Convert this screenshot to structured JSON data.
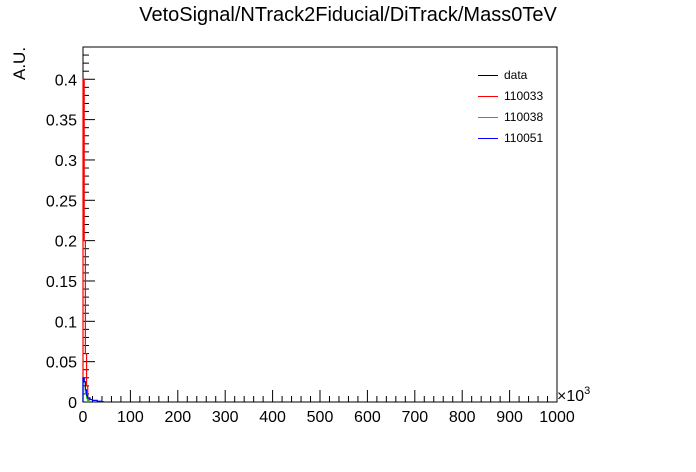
{
  "chart_data": {
    "type": "line",
    "title": "VetoSignal/NTrack2Fiducial/DiTrack/Mass0TeV",
    "xlabel": "",
    "ylabel": "A.U.",
    "x_multiplier": "×10^3",
    "x_multiplier_label": "×10",
    "x_multiplier_exp": "3",
    "xlim": [
      0,
      1000
    ],
    "ylim": [
      0,
      0.44
    ],
    "xticks": [
      "0",
      "100",
      "200",
      "300",
      "400",
      "500",
      "600",
      "700",
      "800",
      "900",
      "1000"
    ],
    "yticks": [
      "0",
      "0.05",
      "0.1",
      "0.15",
      "0.2",
      "0.25",
      "0.3",
      "0.35",
      "0.4"
    ],
    "grid": false,
    "legend_position": "top-right",
    "series": [
      {
        "name": "data",
        "color": "#000000",
        "x": [],
        "values": []
      },
      {
        "name": "110033",
        "color": "#ff0000",
        "x": [
          0,
          2.5,
          5,
          7.5,
          10
        ],
        "values": [
          0.4,
          0.2,
          0.06,
          0.02,
          0.005
        ]
      },
      {
        "name": "110038",
        "color": "#00cc00",
        "x": [
          0,
          2.5,
          5,
          7.5,
          10
        ],
        "values": [
          0.03,
          0.025,
          0.01,
          0.005,
          0.002
        ]
      },
      {
        "name": "110051",
        "color": "#0000ff",
        "x": [
          0,
          2.5,
          5,
          7.5,
          10,
          15,
          20,
          30,
          40
        ],
        "values": [
          0.03,
          0.025,
          0.015,
          0.008,
          0.005,
          0.003,
          0.002,
          0.001,
          0.0005
        ]
      }
    ]
  }
}
